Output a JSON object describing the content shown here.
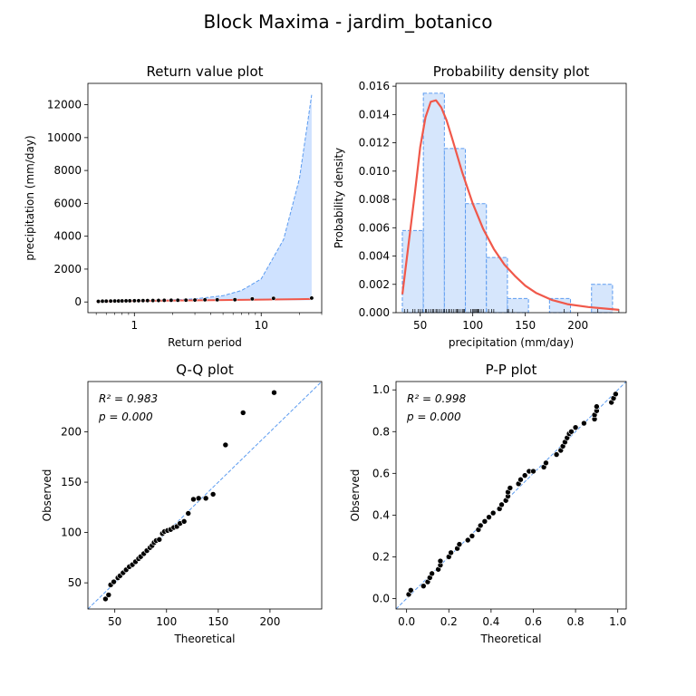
{
  "figure": {
    "title": "Block Maxima - jardim_botanico"
  },
  "colors": {
    "line": "#f0584a",
    "ci_fill": "#cfe2ff",
    "ci_edge": "#5b9bf0",
    "hist_fill": "#d6e6fc",
    "hist_edge": "#5b9bf0",
    "points": "#000000",
    "diagonal": "#5b9bf0"
  },
  "chart_data": [
    {
      "type": "line",
      "title": "Return value plot",
      "xlabel": "Return period",
      "ylabel": "precipitation (mm/day)",
      "xscale": "log",
      "xlim": [
        0.43,
        30
      ],
      "ylim": [
        -650,
        13300
      ],
      "xticks": [
        1,
        10
      ],
      "xtick_labels": [
        "1",
        "10"
      ],
      "yticks": [
        0,
        2000,
        4000,
        6000,
        8000,
        10000,
        12000
      ],
      "ytick_labels": [
        "0",
        "2000",
        "4000",
        "6000",
        "8000",
        "10000",
        "12000"
      ],
      "fit_line": {
        "x": [
          0.5,
          1,
          2,
          5,
          10,
          20,
          25
        ],
        "y": [
          35,
          62,
          88,
          118,
          145,
          172,
          180
        ]
      },
      "ci_upper": {
        "x": [
          0.5,
          1,
          2,
          3,
          5,
          7,
          10,
          15,
          20,
          25
        ],
        "y": [
          60,
          85,
          130,
          190,
          380,
          700,
          1400,
          3800,
          7500,
          12600
        ]
      },
      "ci_lower": {
        "x": [
          0.5,
          25
        ],
        "y": [
          20,
          110
        ]
      },
      "points": {
        "x": [
          0.52,
          0.56,
          0.6,
          0.65,
          0.7,
          0.75,
          0.8,
          0.86,
          0.92,
          1.0,
          1.08,
          1.17,
          1.27,
          1.4,
          1.55,
          1.72,
          1.95,
          2.2,
          2.55,
          3.0,
          3.6,
          4.5,
          6.2,
          8.5,
          12.5,
          25
        ],
        "y": [
          35,
          48,
          52,
          56,
          60,
          62,
          66,
          70,
          72,
          75,
          78,
          82,
          85,
          88,
          92,
          100,
          103,
          105,
          110,
          118,
          133,
          134,
          138,
          187,
          219,
          239
        ]
      }
    },
    {
      "type": "bar",
      "title": "Probability density plot",
      "xlabel": "precipitation (mm/day)",
      "ylabel": "Probability density",
      "xlim": [
        27,
        246
      ],
      "ylim": [
        0,
        0.0162
      ],
      "xticks": [
        50,
        100,
        150,
        200
      ],
      "xtick_labels": [
        "50",
        "100",
        "150",
        "200"
      ],
      "yticks": [
        0,
        0.002,
        0.004,
        0.006,
        0.008,
        0.01,
        0.012,
        0.014,
        0.016
      ],
      "ytick_labels": [
        "0.000",
        "0.002",
        "0.004",
        "0.006",
        "0.008",
        "0.010",
        "0.012",
        "0.014",
        "0.016"
      ],
      "bins": [
        {
          "x0": 33,
          "x1": 53,
          "value": 0.0058
        },
        {
          "x0": 53,
          "x1": 73,
          "value": 0.0155
        },
        {
          "x0": 73,
          "x1": 93,
          "value": 0.0116
        },
        {
          "x0": 93,
          "x1": 113,
          "value": 0.0077
        },
        {
          "x0": 113,
          "x1": 133,
          "value": 0.0039
        },
        {
          "x0": 133,
          "x1": 153,
          "value": 0.001
        },
        {
          "x0": 153,
          "x1": 173,
          "value": 0
        },
        {
          "x0": 173,
          "x1": 193,
          "value": 0.001
        },
        {
          "x0": 193,
          "x1": 213,
          "value": 0
        },
        {
          "x0": 213,
          "x1": 233,
          "value": 0.002
        }
      ],
      "pdf_curve": {
        "x": [
          33,
          40,
          45,
          50,
          55,
          60,
          65,
          70,
          75,
          80,
          90,
          100,
          110,
          120,
          130,
          140,
          150,
          160,
          175,
          190,
          210,
          239
        ],
        "y": [
          0.0013,
          0.0055,
          0.0085,
          0.0117,
          0.0138,
          0.0149,
          0.015,
          0.0145,
          0.0136,
          0.0124,
          0.0099,
          0.0077,
          0.0059,
          0.0045,
          0.0034,
          0.0026,
          0.0019,
          0.0014,
          0.0009,
          0.0006,
          0.0004,
          0.0002
        ]
      },
      "rug": [
        35,
        38,
        43,
        45,
        48,
        50,
        52,
        55,
        56,
        58,
        60,
        62,
        63,
        65,
        66,
        68,
        70,
        72,
        73,
        75,
        77,
        78,
        80,
        82,
        84,
        85,
        86,
        88,
        90,
        91,
        92,
        98,
        100,
        101,
        102,
        103,
        104,
        105,
        106,
        108,
        110,
        115,
        118,
        120,
        133,
        134,
        138,
        187,
        219,
        239
      ]
    },
    {
      "type": "scatter",
      "title": "Q-Q plot",
      "xlabel": "Theoretical",
      "ylabel": "Observed",
      "xlim": [
        24,
        250
      ],
      "ylim": [
        24,
        250
      ],
      "xticks": [
        50,
        100,
        150,
        200
      ],
      "xtick_labels": [
        "50",
        "100",
        "150",
        "200"
      ],
      "yticks": [
        50,
        100,
        150,
        200
      ],
      "ytick_labels": [
        "50",
        "100",
        "150",
        "200"
      ],
      "annotation": {
        "r2": "R² = 0.983",
        "p": "p = 0.000"
      },
      "points": {
        "x": [
          41,
          44,
          46,
          49,
          53,
          55,
          58,
          61,
          64,
          67,
          70,
          73,
          75,
          78,
          81,
          84,
          86,
          88,
          90,
          93,
          96,
          98,
          101,
          104,
          107,
          110,
          113,
          117,
          121,
          126,
          131,
          138,
          145,
          157,
          174,
          204
        ],
        "y": [
          34,
          38,
          48,
          51,
          55,
          57,
          60,
          63,
          66,
          68,
          71,
          74,
          76,
          79,
          82,
          85,
          87,
          90,
          92,
          93,
          99,
          101,
          102,
          103,
          105,
          106,
          109,
          111,
          119,
          133,
          134,
          134,
          138,
          187,
          219,
          239
        ]
      }
    },
    {
      "type": "scatter",
      "title": "P-P plot",
      "xlabel": "Theoretical",
      "ylabel": "Observed",
      "xlim": [
        -0.05,
        1.04
      ],
      "ylim": [
        -0.05,
        1.04
      ],
      "xticks": [
        0,
        0.2,
        0.4,
        0.6,
        0.8,
        1.0
      ],
      "xtick_labels": [
        "0.0",
        "0.2",
        "0.4",
        "0.6",
        "0.8",
        "1.0"
      ],
      "yticks": [
        0,
        0.2,
        0.4,
        0.6,
        0.8,
        1.0
      ],
      "ytick_labels": [
        "0.0",
        "0.2",
        "0.4",
        "0.6",
        "0.8",
        "1.0"
      ],
      "annotation": {
        "r2": "R² = 0.998",
        "p": "p = 0.000"
      },
      "points": {
        "x": [
          0.01,
          0.02,
          0.08,
          0.1,
          0.11,
          0.12,
          0.15,
          0.16,
          0.16,
          0.2,
          0.21,
          0.24,
          0.25,
          0.29,
          0.31,
          0.34,
          0.35,
          0.37,
          0.39,
          0.41,
          0.44,
          0.45,
          0.47,
          0.48,
          0.48,
          0.49,
          0.53,
          0.54,
          0.56,
          0.58,
          0.6,
          0.65,
          0.66,
          0.71,
          0.73,
          0.74,
          0.75,
          0.76,
          0.77,
          0.78,
          0.8,
          0.84,
          0.89,
          0.89,
          0.9,
          0.9,
          0.97,
          0.98,
          0.99
        ],
        "y": [
          0.02,
          0.04,
          0.06,
          0.08,
          0.1,
          0.12,
          0.14,
          0.16,
          0.18,
          0.2,
          0.22,
          0.24,
          0.26,
          0.28,
          0.3,
          0.33,
          0.35,
          0.37,
          0.39,
          0.41,
          0.43,
          0.45,
          0.47,
          0.49,
          0.51,
          0.53,
          0.55,
          0.57,
          0.59,
          0.61,
          0.61,
          0.63,
          0.65,
          0.69,
          0.71,
          0.73,
          0.75,
          0.77,
          0.79,
          0.8,
          0.82,
          0.84,
          0.86,
          0.88,
          0.9,
          0.92,
          0.94,
          0.96,
          0.98
        ]
      }
    }
  ]
}
